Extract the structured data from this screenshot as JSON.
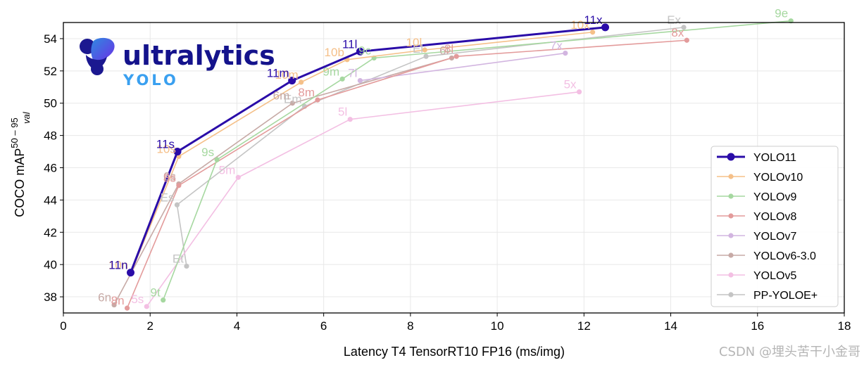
{
  "logo": {
    "brand": "ultralytics",
    "sub": "YOLO"
  },
  "watermark": "CSDN @埋头苦干小金哥",
  "chart_data": {
    "type": "line",
    "xlabel": "Latency T4 TensorRT10 FP16 (ms/img)",
    "ylabel": "COCO mAP",
    "ylabel_sup": "50 – 95",
    "ylabel_sub": "val",
    "xlim": [
      0,
      18
    ],
    "ylim": [
      37,
      55
    ],
    "xticks": [
      0,
      2,
      4,
      6,
      8,
      10,
      12,
      14,
      16,
      18
    ],
    "yticks": [
      38,
      40,
      42,
      44,
      46,
      48,
      50,
      52,
      54
    ],
    "grid": true,
    "legend_position": "bottom-right",
    "series": [
      {
        "name": "YOLO11",
        "color": "#2a0ca8",
        "bold": true,
        "points": [
          {
            "x": 1.55,
            "y": 39.5,
            "label": "11n"
          },
          {
            "x": 2.63,
            "y": 47.0,
            "label": "11s"
          },
          {
            "x": 5.27,
            "y": 51.4,
            "label": "11m"
          },
          {
            "x": 6.84,
            "y": 53.2,
            "label": "11l"
          },
          {
            "x": 12.49,
            "y": 54.7,
            "label": "11x"
          }
        ]
      },
      {
        "name": "YOLOv10",
        "color": "#f5c089",
        "points": [
          {
            "x": 1.56,
            "y": 39.5,
            "label": "10n"
          },
          {
            "x": 2.66,
            "y": 46.7,
            "label": "10s"
          },
          {
            "x": 5.48,
            "y": 51.3,
            "label": "10m"
          },
          {
            "x": 6.54,
            "y": 52.7,
            "label": "10b"
          },
          {
            "x": 8.33,
            "y": 53.3,
            "label": "10l"
          },
          {
            "x": 12.2,
            "y": 54.4,
            "label": "10x"
          }
        ]
      },
      {
        "name": "YOLOv9",
        "color": "#a6d8a0",
        "points": [
          {
            "x": 2.3,
            "y": 37.8,
            "label": "9t"
          },
          {
            "x": 3.54,
            "y": 46.5,
            "label": "9s"
          },
          {
            "x": 6.43,
            "y": 51.5,
            "label": "9m"
          },
          {
            "x": 7.16,
            "y": 52.8,
            "label": "9c"
          },
          {
            "x": 16.77,
            "y": 55.1,
            "label": "9e"
          }
        ]
      },
      {
        "name": "YOLOv8",
        "color": "#e39b9b",
        "points": [
          {
            "x": 1.47,
            "y": 37.3,
            "label": "8n"
          },
          {
            "x": 2.66,
            "y": 44.9,
            "label": "8s"
          },
          {
            "x": 5.86,
            "y": 50.2,
            "label": "8m"
          },
          {
            "x": 9.06,
            "y": 52.9,
            "label": "8l"
          },
          {
            "x": 14.37,
            "y": 53.9,
            "label": "8x"
          }
        ]
      },
      {
        "name": "YOLOv7",
        "color": "#d2b5e0",
        "points": [
          {
            "x": 6.84,
            "y": 51.4,
            "label": "7l"
          },
          {
            "x": 11.57,
            "y": 53.1,
            "label": "7x"
          }
        ]
      },
      {
        "name": "YOLOv6-3.0",
        "color": "#c7aaa6",
        "points": [
          {
            "x": 1.17,
            "y": 37.5,
            "label": "6n"
          },
          {
            "x": 2.66,
            "y": 45.0,
            "label": "6s"
          },
          {
            "x": 5.28,
            "y": 50.0,
            "label": "6m"
          },
          {
            "x": 8.95,
            "y": 52.8,
            "label": "6l"
          }
        ]
      },
      {
        "name": "YOLOv5",
        "color": "#f3bfe3",
        "points": [
          {
            "x": 1.92,
            "y": 37.4,
            "label": "5s"
          },
          {
            "x": 4.03,
            "y": 45.4,
            "label": "5m"
          },
          {
            "x": 6.61,
            "y": 49.0,
            "label": "5l"
          },
          {
            "x": 11.89,
            "y": 50.7,
            "label": "5x"
          }
        ]
      },
      {
        "name": "PP-YOLOE+",
        "color": "#c4c4c4",
        "points": [
          {
            "x": 2.84,
            "y": 39.9,
            "label": "Et"
          },
          {
            "x": 2.62,
            "y": 43.7,
            "label": "Es"
          },
          {
            "x": 5.56,
            "y": 49.8,
            "label": "Em"
          },
          {
            "x": 8.36,
            "y": 52.9,
            "label": "El"
          },
          {
            "x": 14.3,
            "y": 54.7,
            "label": "Ex"
          }
        ]
      }
    ]
  }
}
